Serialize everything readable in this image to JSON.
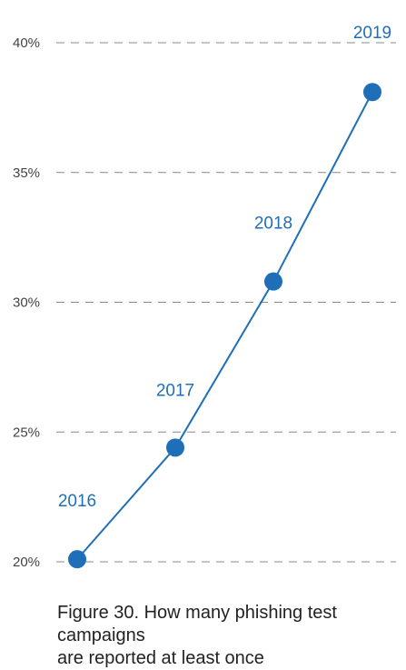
{
  "chart_data": {
    "type": "line",
    "x": [
      "2016",
      "2017",
      "2018",
      "2019"
    ],
    "series": [
      {
        "values": [
          20.1,
          24.4,
          30.8,
          38.1
        ]
      }
    ],
    "point_labels": [
      "2016",
      "2017",
      "2018",
      "2019"
    ],
    "ylim": [
      20,
      40
    ],
    "yticks": [
      20,
      25,
      30,
      35,
      40
    ],
    "ytick_labels": [
      "20%",
      "25%",
      "30%",
      "35%",
      "40%"
    ],
    "grid": true,
    "colors": {
      "series": "#1f6fb8",
      "grid": "#888888"
    }
  },
  "caption": "Figure 30. How many phishing test campaigns\nare reported at least once"
}
